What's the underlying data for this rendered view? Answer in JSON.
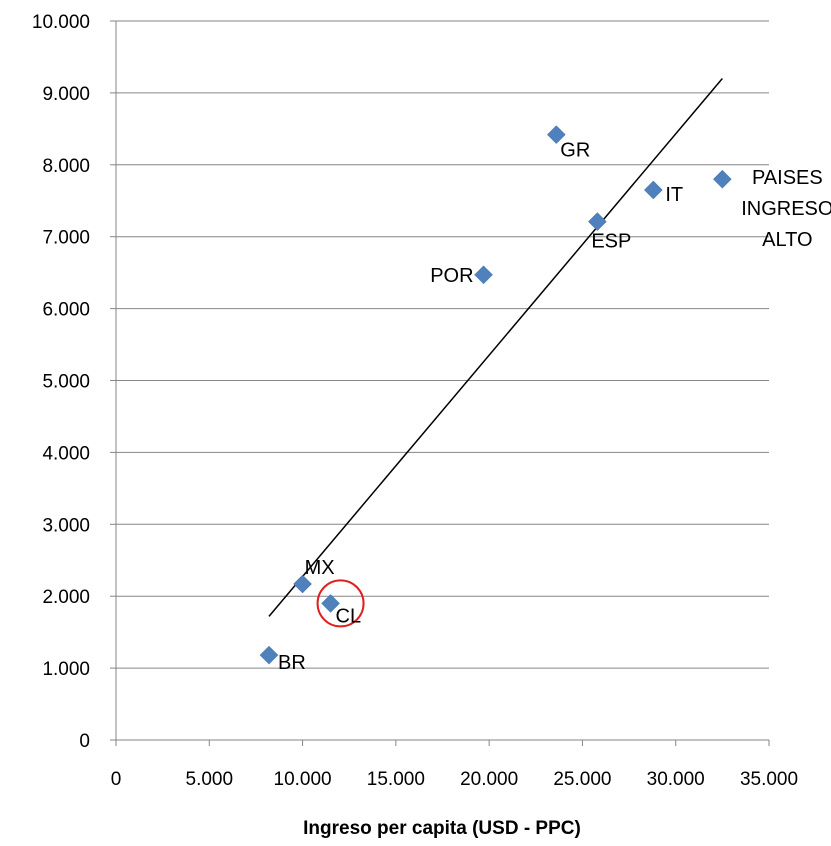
{
  "chart_data": {
    "type": "scatter",
    "xlabel": "Ingreso per capita (USD - PPC)",
    "ylabel": "",
    "xlim": [
      0,
      35000
    ],
    "ylim": [
      0,
      10000
    ],
    "x_ticks": [
      0,
      5000,
      10000,
      15000,
      20000,
      25000,
      30000,
      35000
    ],
    "y_ticks": [
      0,
      1000,
      2000,
      3000,
      4000,
      5000,
      6000,
      7000,
      8000,
      9000,
      10000
    ],
    "x_tick_labels": [
      "0",
      "5.000",
      "10.000",
      "15.000",
      "20.000",
      "25.000",
      "30.000",
      "35.000"
    ],
    "y_tick_labels": [
      "0",
      "1.000",
      "2.000",
      "3.000",
      "4.000",
      "5.000",
      "6.000",
      "7.000",
      "8.000",
      "9.000",
      "10.000"
    ],
    "horizontal_grid": true,
    "marker": "diamond",
    "marker_color": "#4F81BD",
    "points": [
      {
        "label": "BR",
        "x": 8200,
        "y": 1180
      },
      {
        "label": "MX",
        "x": 10000,
        "y": 2170
      },
      {
        "label": "CL",
        "x": 11500,
        "y": 1900,
        "highlighted": true
      },
      {
        "label": "POR",
        "x": 19700,
        "y": 6470
      },
      {
        "label": "GR",
        "x": 23600,
        "y": 8420
      },
      {
        "label": "ESP",
        "x": 25800,
        "y": 7210
      },
      {
        "label": "IT",
        "x": 28800,
        "y": 7650
      },
      {
        "label": "PAISES INGRESO ALTO",
        "label_lines": [
          "PAISES",
          "INGRESO",
          "ALTO"
        ],
        "x": 32500,
        "y": 7800
      }
    ],
    "trendline": {
      "x1": 8200,
      "y1": 1720,
      "x2": 32500,
      "y2": 9200,
      "color": "#000000"
    },
    "highlight_color": "#E02020"
  }
}
